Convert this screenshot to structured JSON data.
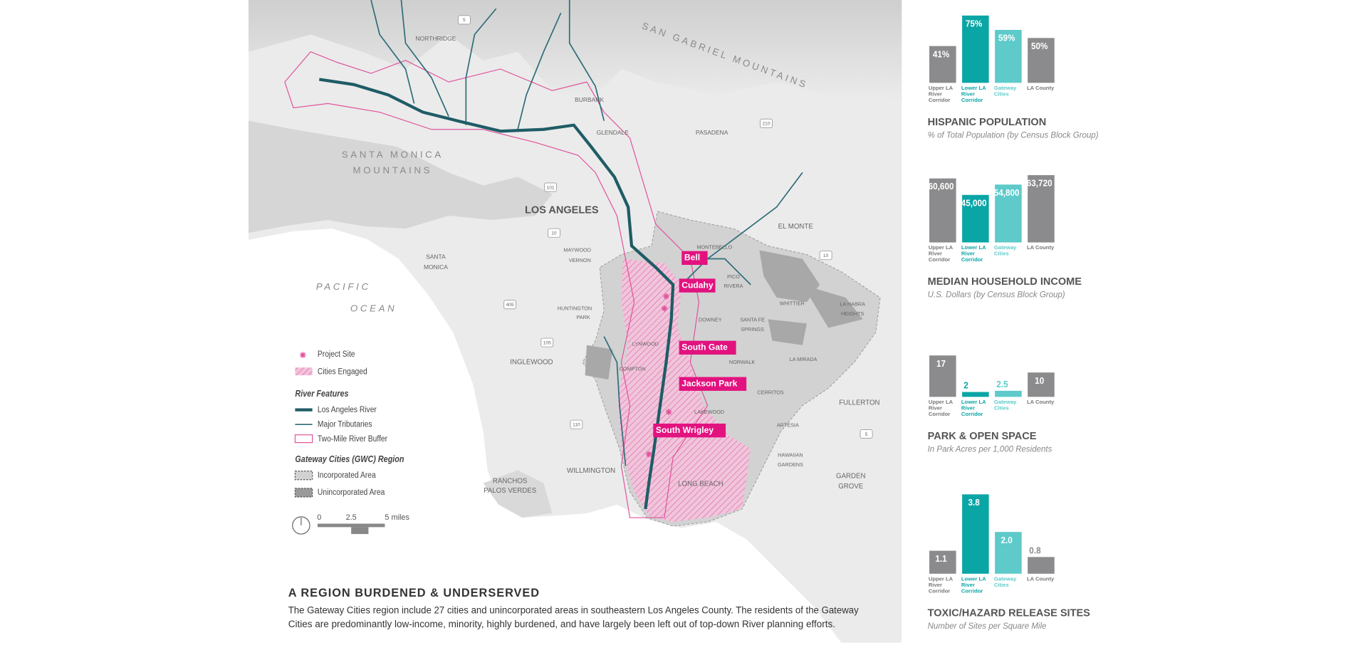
{
  "map": {
    "labels": [
      "NORTHRIDGE",
      "SAN GABRIEL MOUNTAINS",
      "BURBANK",
      "GLENDALE",
      "PASADENA",
      "SANTA MONICA",
      "MOUNTAINS",
      "LOS ANGELES",
      "EL MONTE",
      "MONTEBELLO",
      "MAYWOOD",
      "VERNON",
      "SANTA",
      "MONICA",
      "PICO",
      "RIVERA",
      "PACIFIC",
      "OCEAN",
      "WHITTIER",
      "LA HABRA",
      "HEIGHTS",
      "HUNTINGTON",
      "PARK",
      "DOWNEY",
      "SANTA FE",
      "SPRINGS",
      "INGLEWOOD",
      "LYNWOOD",
      "NORWALK",
      "LA MIRADA",
      "COMPTON",
      "CERRITOS",
      "LAKEWOOD",
      "FULLERTON",
      "ARTESIA",
      "HAWAIIAN",
      "GARDENS",
      "WILLMINGTON",
      "LONG BEACH",
      "GARDEN",
      "GROVE",
      "RANCHOS",
      "PALOS VERDES"
    ],
    "freeways": [
      "5",
      "210",
      "101",
      "10",
      "10",
      "405",
      "105",
      "110",
      "5"
    ],
    "project_sites": [
      "Bell",
      "Cudahy",
      "South Gate",
      "Jackson Park",
      "South Wrigley"
    ]
  },
  "legend": {
    "project_site": "Project Site",
    "cities_engaged": "Cities Engaged",
    "river_heading": "River Features",
    "river": "Los Angeles River",
    "tributaries": "Major Tributaries",
    "buffer": "Two-Mile River Buffer",
    "region_heading": "Gateway Cities (GWC) Region",
    "incorporated": "Incorporated Area",
    "unincorporated": "Unincorporated Area",
    "scale": [
      "0",
      "2.5",
      "5 miles"
    ]
  },
  "caption": {
    "title": "A REGION BURDENED & UNDERSERVED",
    "body": [
      "The Gateway Cities region include 27 cities and unincorporated areas in southeastern Los Angeles County. The residents of the Gateway",
      "Cities are predominantly low-income, minority, highly burdened, and have largely been left out of top-down River planning efforts."
    ]
  },
  "chart_data": [
    {
      "type": "bar",
      "title": "HISPANIC POPULATION",
      "subtitle": "% of Total Population (by Census Block Group)",
      "categories": [
        "Upper LA River Corridor",
        "Lower LA River Corridor",
        "Gateway Cities",
        "LA County"
      ],
      "values": [
        41,
        75,
        59,
        50
      ],
      "value_labels": [
        "41%",
        "75%",
        "59%",
        "50%"
      ],
      "colors": [
        "#8b8b8d",
        "#0aa5a5",
        "#5ecaca",
        "#8b8b8d"
      ]
    },
    {
      "type": "bar",
      "title": "MEDIAN HOUSEHOLD INCOME",
      "subtitle": "U.S. Dollars (by Census Block Group)",
      "categories": [
        "Upper LA River Corridor",
        "Lower LA River Corridor",
        "Gateway Cities",
        "LA County"
      ],
      "values": [
        60600,
        45000,
        54800,
        63720
      ],
      "value_labels": [
        "60,600",
        "45,000",
        "54,800",
        "63,720"
      ],
      "colors": [
        "#8b8b8d",
        "#0aa5a5",
        "#5ecaca",
        "#8b8b8d"
      ]
    },
    {
      "type": "bar",
      "title": "PARK & OPEN SPACE",
      "subtitle": "In Park Acres per 1,000 Residents",
      "categories": [
        "Upper LA River Corridor",
        "Lower LA River Corridor",
        "Gateway Cities",
        "LA County"
      ],
      "values": [
        17,
        2,
        2.5,
        10
      ],
      "colors": [
        "#8b8b8d",
        "#0aa5a5",
        "#5ecaca",
        "#8b8b8d"
      ]
    },
    {
      "type": "bar",
      "title": "TOXIC/HAZARD RELEASE SITES",
      "subtitle": "Number of Sites per Square Mile",
      "categories": [
        "Upper LA River Corridor",
        "Lower LA River Corridor",
        "Gateway Cities",
        "LA County"
      ],
      "values": [
        1.1,
        3.8,
        2.0,
        0.8
      ],
      "value_labels": [
        "1.1",
        "3.8",
        "2.0",
        "0.8"
      ],
      "colors": [
        "#8b8b8d",
        "#0aa5a5",
        "#5ecaca",
        "#8b8b8d"
      ]
    }
  ]
}
